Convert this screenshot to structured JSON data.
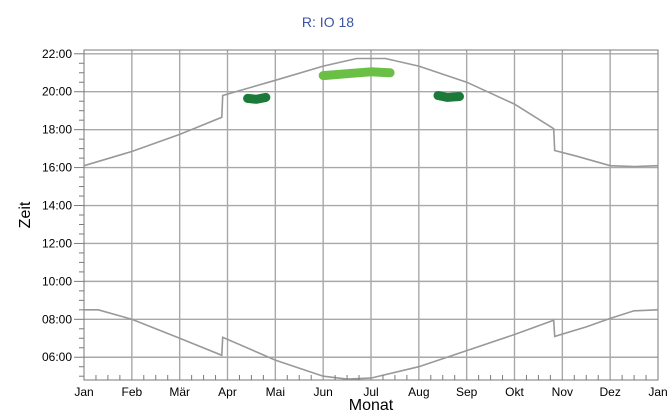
{
  "chart_data": {
    "type": "line",
    "title": "R: IO 18",
    "xlabel": "Monat",
    "ylabel": "Zeit",
    "x_tick_labels": [
      "Jan",
      "Feb",
      "Mär",
      "Apr",
      "Mai",
      "Jun",
      "Jul",
      "Aug",
      "Sep",
      "Okt",
      "Nov",
      "Dez",
      "Jan"
    ],
    "y_tick_labels": [
      "06:00",
      "08:00",
      "10:00",
      "12:00",
      "14:00",
      "16:00",
      "18:00",
      "20:00",
      "22:00"
    ],
    "x_unit": "month index (0 = 1 Jan, 12 = 1 Jan next year)",
    "y_unit": "hours",
    "xlim": [
      0,
      12
    ],
    "ylim": [
      4.8,
      22.2
    ],
    "grid": true,
    "colors": {
      "title": "#3b55a5",
      "curve": "#999999",
      "grid": "#a8a8a8",
      "observation_light": "#6abf45",
      "observation_dark": "#1b7a3a"
    },
    "series": [
      {
        "role": "sunset-curve",
        "points": [
          [
            0,
            16.1
          ],
          [
            1,
            16.85
          ],
          [
            2,
            17.75
          ],
          [
            2.88,
            18.65
          ],
          [
            2.9,
            19.8
          ],
          [
            4,
            20.6
          ],
          [
            5,
            21.35
          ],
          [
            5.7,
            21.75
          ],
          [
            6.3,
            21.75
          ],
          [
            7,
            21.35
          ],
          [
            8,
            20.5
          ],
          [
            9,
            19.35
          ],
          [
            9.82,
            18.05
          ],
          [
            9.84,
            16.9
          ],
          [
            10.3,
            16.6
          ],
          [
            11,
            16.1
          ],
          [
            11.5,
            16.05
          ],
          [
            12,
            16.1
          ]
        ]
      },
      {
        "role": "sunrise-curve",
        "points": [
          [
            0,
            8.5
          ],
          [
            0.3,
            8.5
          ],
          [
            1,
            8.0
          ],
          [
            2,
            7.0
          ],
          [
            2.88,
            6.1
          ],
          [
            2.9,
            7.05
          ],
          [
            4,
            5.85
          ],
          [
            5,
            5.0
          ],
          [
            5.5,
            4.85
          ],
          [
            6,
            4.9
          ],
          [
            7,
            5.5
          ],
          [
            8,
            6.35
          ],
          [
            9,
            7.2
          ],
          [
            9.82,
            7.95
          ],
          [
            9.84,
            7.1
          ],
          [
            10.5,
            7.6
          ],
          [
            11,
            8.05
          ],
          [
            11.5,
            8.45
          ],
          [
            12,
            8.5
          ]
        ]
      },
      {
        "role": "observation",
        "color": "observation_dark",
        "points": [
          [
            3.42,
            19.65
          ],
          [
            3.6,
            19.6
          ],
          [
            3.8,
            19.7
          ]
        ]
      },
      {
        "role": "observation",
        "color": "observation_light",
        "points": [
          [
            5.0,
            20.85
          ],
          [
            5.5,
            20.95
          ],
          [
            6.0,
            21.05
          ],
          [
            6.4,
            21.0
          ]
        ]
      },
      {
        "role": "observation",
        "color": "observation_dark",
        "points": [
          [
            7.4,
            19.8
          ],
          [
            7.6,
            19.7
          ],
          [
            7.85,
            19.75
          ]
        ]
      }
    ]
  }
}
